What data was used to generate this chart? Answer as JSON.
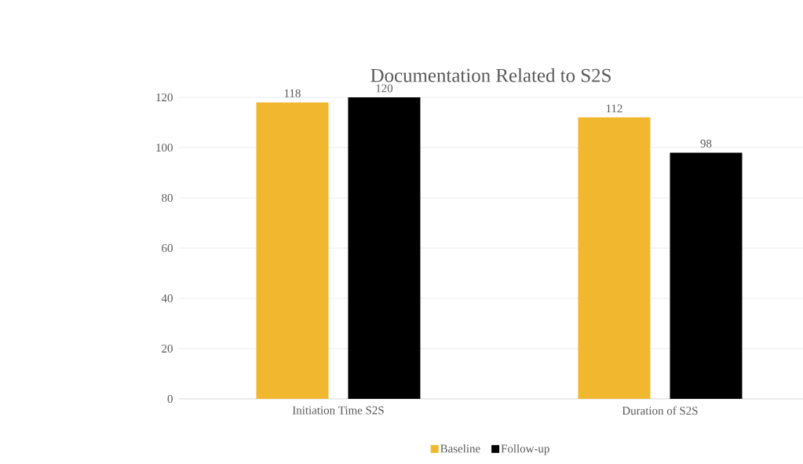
{
  "chart_data": {
    "type": "bar",
    "title": "Documentation Related to S2S",
    "categories": [
      "Initiation Time S2S",
      "Duration of S2S"
    ],
    "series": [
      {
        "name": "Baseline",
        "color": "#f0b72f",
        "values": [
          118,
          112
        ]
      },
      {
        "name": "Follow-up",
        "color": "#000000",
        "values": [
          120,
          98
        ]
      }
    ],
    "ylim": [
      0,
      120
    ],
    "yticks": [
      0,
      20,
      40,
      60,
      80,
      100,
      120
    ],
    "grid": "y",
    "legend": "bottom",
    "data_labels": true
  }
}
